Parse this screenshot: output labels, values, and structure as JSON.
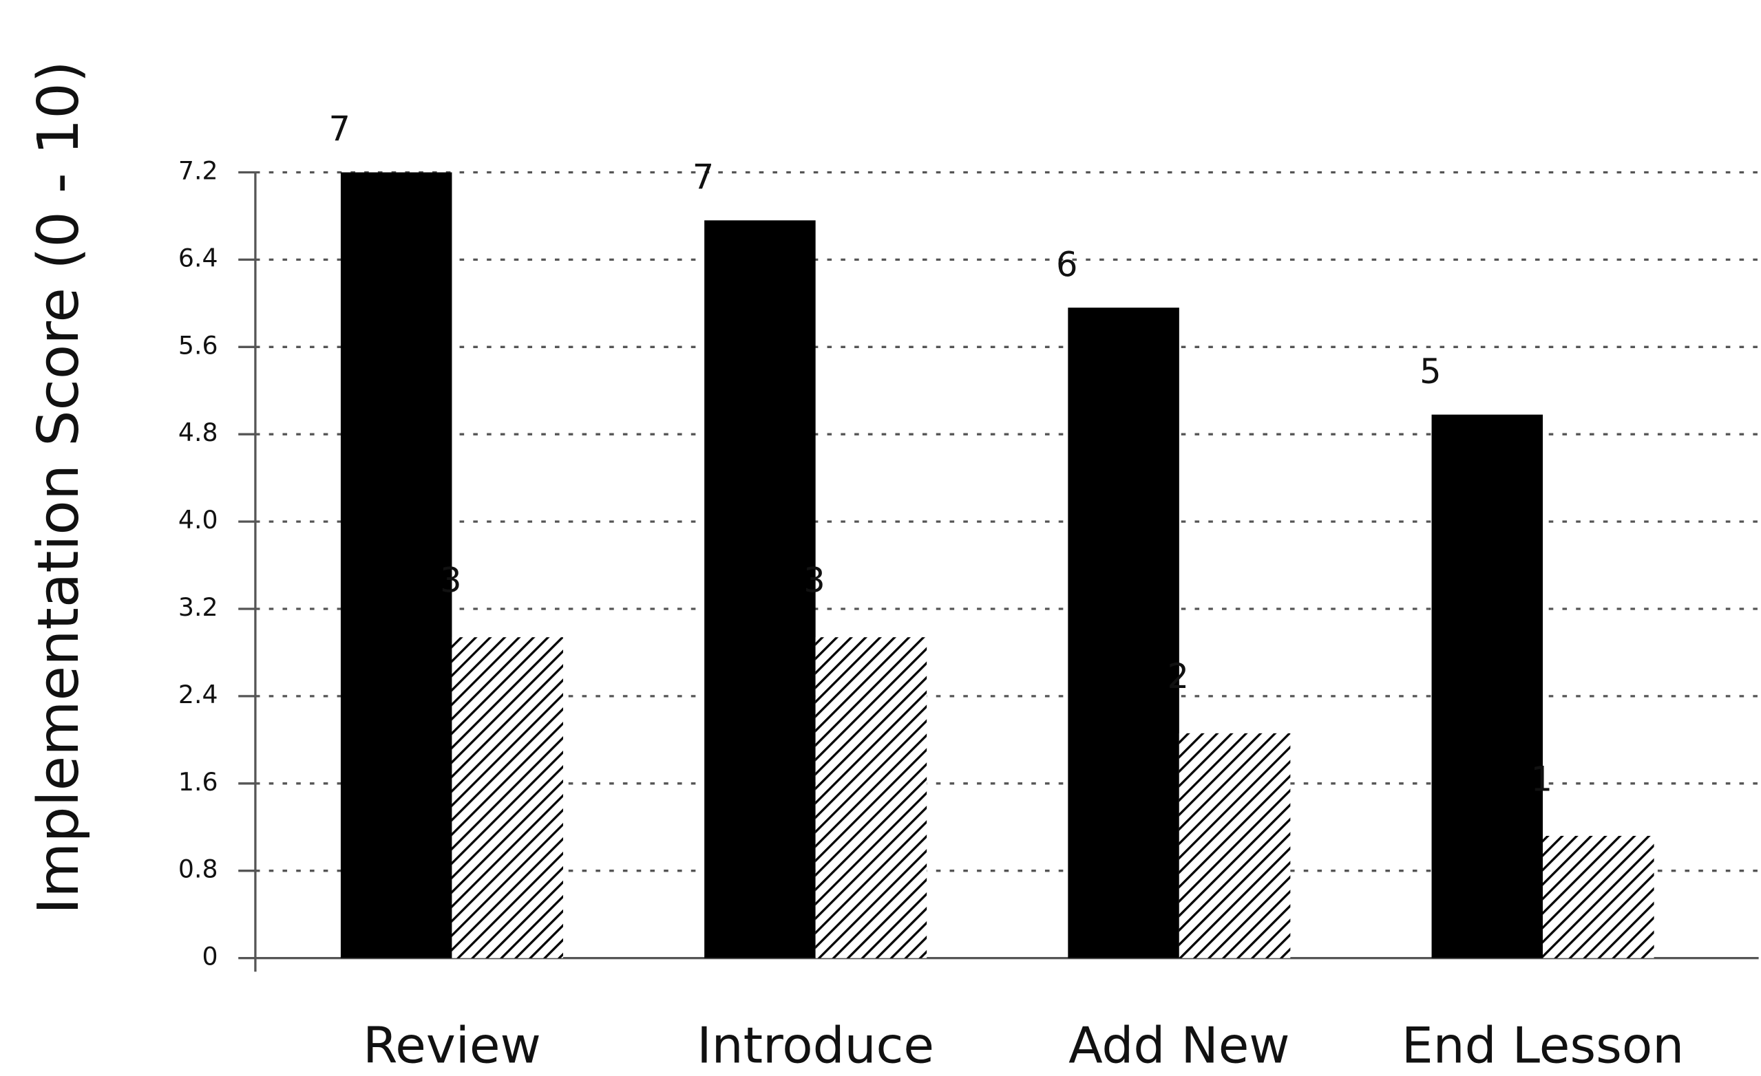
{
  "chart_data": {
    "type": "bar",
    "y_label": "Implementation Score (0 - 10)",
    "categories": [
      "Review",
      "Introduce",
      "Add New",
      "End Lesson"
    ],
    "series": [
      {
        "color": "#000000",
        "pattern": "solid",
        "values": [
          7.2,
          6.76,
          5.96,
          4.98
        ],
        "value_labels": [
          "7",
          "7",
          "6",
          "5"
        ]
      },
      {
        "color": "#000000",
        "pattern": "hatch",
        "values": [
          2.94,
          2.94,
          2.06,
          1.12
        ],
        "value_labels": [
          "3",
          "3",
          "2",
          "1"
        ]
      }
    ],
    "ylim": [
      0,
      7.2
    ],
    "yticks": [
      0,
      0.8,
      1.6,
      2.4,
      3.2,
      {
        "value": 4,
        "label": "4.0"
      },
      4.8,
      5.6,
      6.4,
      7.2
    ],
    "grid": true
  }
}
